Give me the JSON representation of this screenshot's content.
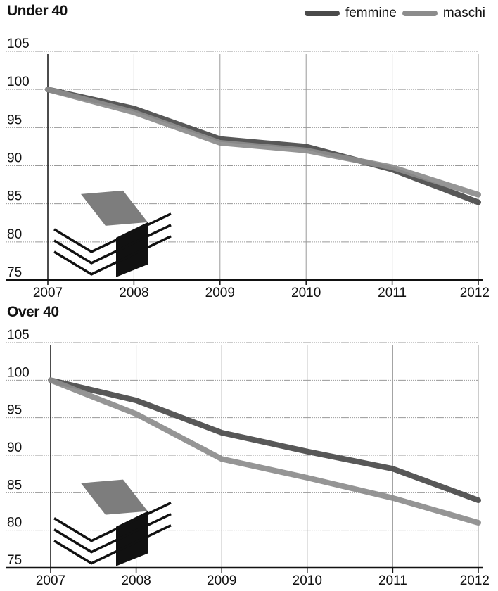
{
  "colors": {
    "femmine": "#4a4a4a",
    "maschi": "#8c8c8c",
    "grid": "#9a9a9a",
    "axis": "#111111"
  },
  "legend": {
    "femmine": "femmine",
    "maschi": "maschi"
  },
  "chart_data": [
    {
      "type": "line",
      "title": "Under 40",
      "x": [
        2007,
        2008,
        2009,
        2010,
        2011,
        2012
      ],
      "ylim": [
        75,
        105
      ],
      "yticks": [
        75,
        80,
        85,
        90,
        95,
        100,
        105
      ],
      "grid": true,
      "legend": "top-right",
      "series": [
        {
          "name": "femmine",
          "values": [
            100,
            97.5,
            93.5,
            92.5,
            89.5,
            85.2
          ]
        },
        {
          "name": "maschi",
          "values": [
            100,
            97,
            93,
            92,
            89.8,
            86.2
          ]
        }
      ]
    },
    {
      "type": "line",
      "title": "Over 40",
      "x": [
        2007,
        2008,
        2009,
        2010,
        2011,
        2012
      ],
      "ylim": [
        75,
        105
      ],
      "yticks": [
        75,
        80,
        85,
        90,
        95,
        100,
        105
      ],
      "grid": true,
      "series": [
        {
          "name": "femmine",
          "values": [
            100,
            97.3,
            93,
            90.5,
            88.2,
            84
          ]
        },
        {
          "name": "maschi",
          "values": [
            100,
            95.5,
            89.5,
            87,
            84.3,
            81
          ]
        }
      ]
    }
  ]
}
